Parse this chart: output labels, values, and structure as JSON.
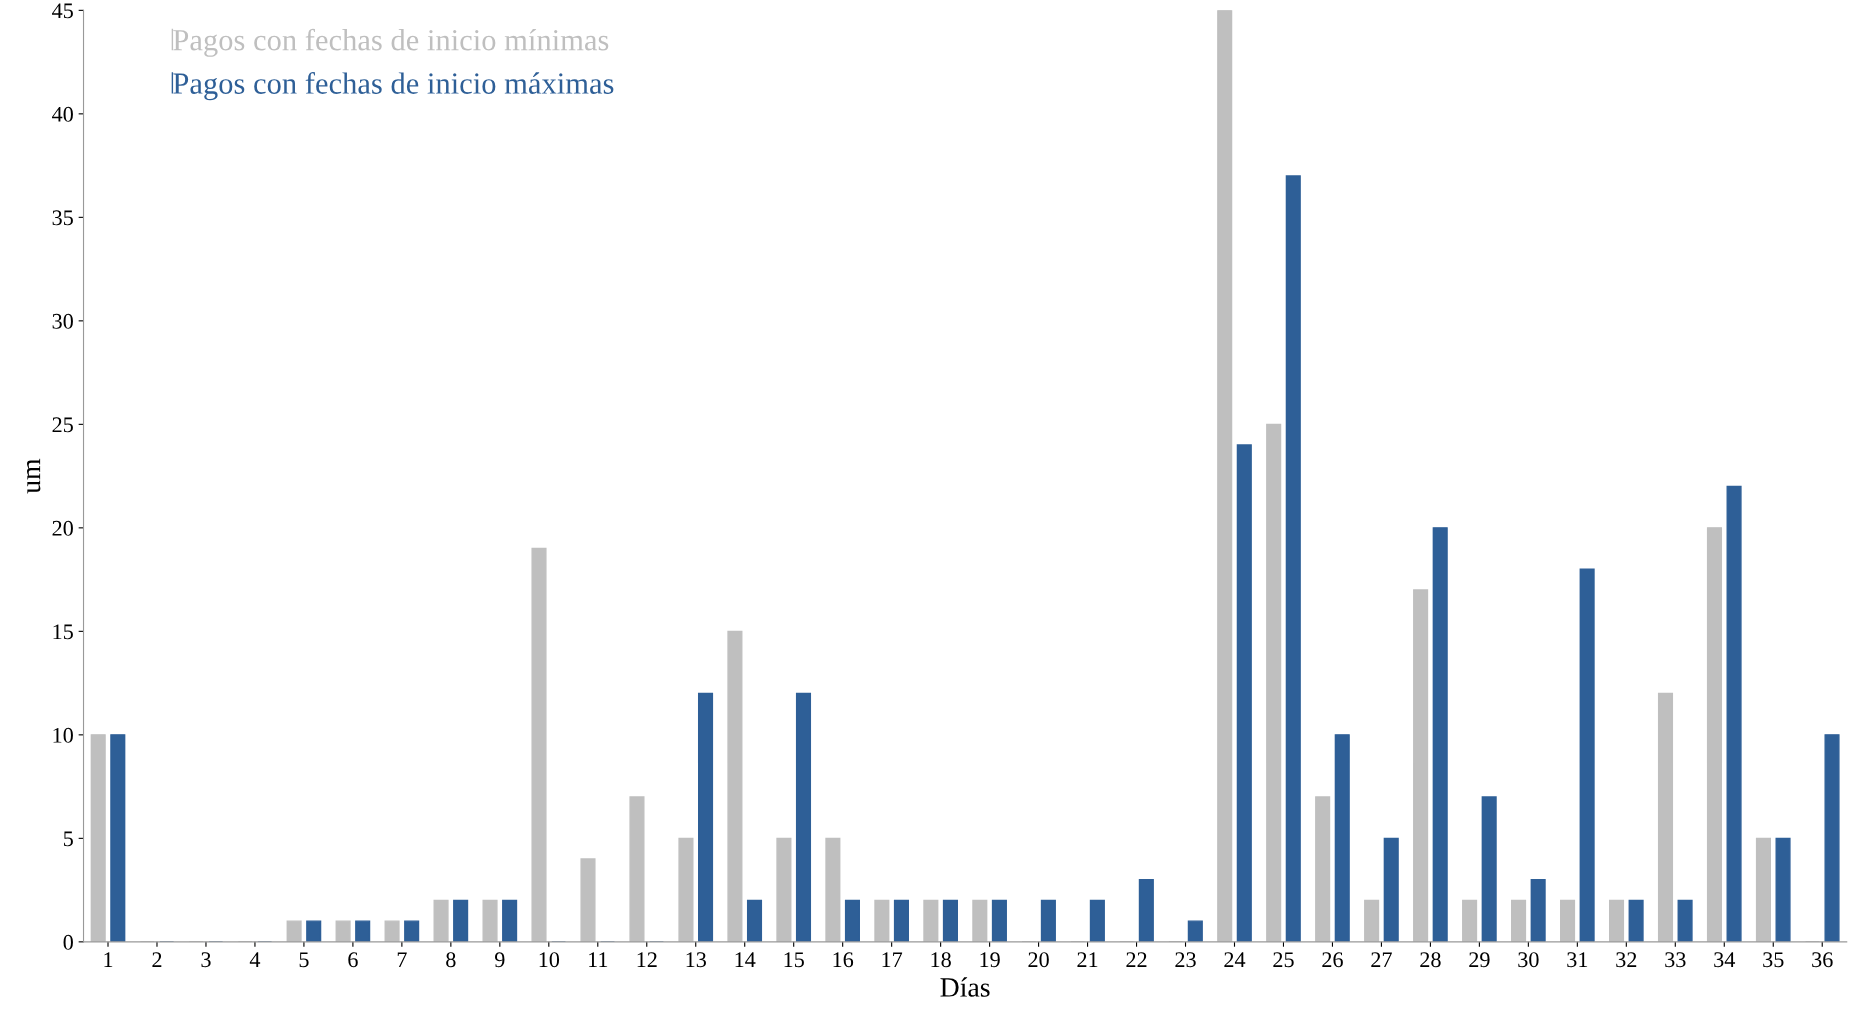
{
  "chart_data": {
    "type": "bar",
    "xlabel": "Días",
    "ylabel": "um",
    "categories": [
      "1",
      "2",
      "3",
      "4",
      "5",
      "6",
      "7",
      "8",
      "9",
      "10",
      "11",
      "12",
      "13",
      "14",
      "15",
      "16",
      "17",
      "18",
      "19",
      "20",
      "21",
      "22",
      "23",
      "24",
      "25",
      "26",
      "27",
      "28",
      "29",
      "30",
      "31",
      "32",
      "33",
      "34",
      "35",
      "36"
    ],
    "series": [
      {
        "name": "Pagos con fechas de inicio mínimas",
        "color": "#bfbfbf",
        "values": [
          10,
          0,
          0,
          0,
          1,
          1,
          1,
          2,
          2,
          19,
          4,
          7,
          5,
          15,
          5,
          5,
          2,
          2,
          2,
          0,
          0,
          0,
          0,
          45,
          25,
          7,
          2,
          17,
          2,
          2,
          2,
          2,
          12,
          20,
          5,
          0
        ]
      },
      {
        "name": "Pagos con fechas de inicio máximas",
        "color": "#2e5f97",
        "values": [
          10,
          0,
          0,
          0,
          1,
          1,
          1,
          2,
          2,
          0,
          0,
          0,
          12,
          2,
          12,
          2,
          2,
          2,
          2,
          2,
          2,
          3,
          1,
          24,
          37,
          10,
          5,
          20,
          7,
          3,
          18,
          2,
          2,
          22,
          5,
          10
        ]
      }
    ],
    "ylim": [
      0,
      45
    ],
    "yticks": [
      0,
      5,
      10,
      15,
      20,
      25,
      30,
      35,
      40,
      45
    ],
    "grid": false,
    "legend": "top left"
  }
}
